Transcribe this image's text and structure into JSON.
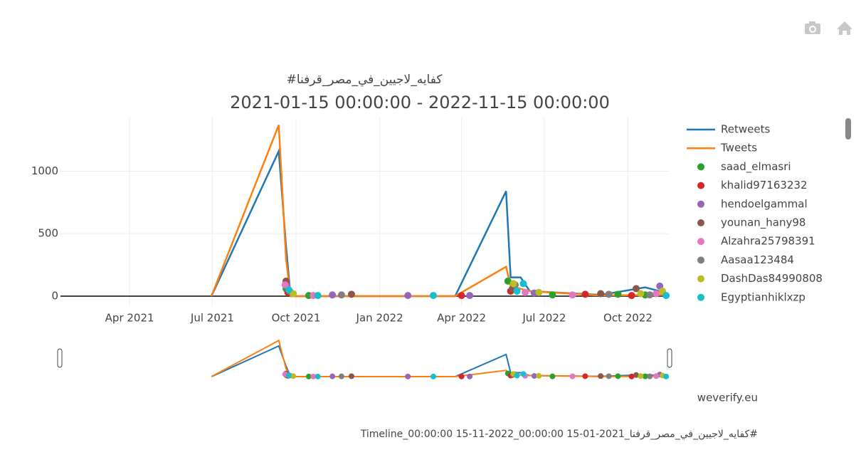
{
  "chart_data": {
    "type": "line",
    "title": "#كفايه_لاجيين_في_مصر_قرفنا",
    "subtitle": "2021-01-15 00:00:00 - 2022-11-15 00:00:00",
    "xlim": [
      "2021-01-15",
      "2022-11-15"
    ],
    "xticks": [
      {
        "value": "2021-04-01",
        "label": "Apr 2021"
      },
      {
        "value": "2021-07-01",
        "label": "Jul 2021"
      },
      {
        "value": "2021-10-01",
        "label": "Oct 2021"
      },
      {
        "value": "2022-01-01",
        "label": "Jan 2022"
      },
      {
        "value": "2022-04-01",
        "label": "Apr 2022"
      },
      {
        "value": "2022-07-01",
        "label": "Jul 2022"
      },
      {
        "value": "2022-10-01",
        "label": "Oct 2022"
      }
    ],
    "ylim": [
      -80,
      1430
    ],
    "yticks": [
      0,
      500,
      1000
    ],
    "grid": true,
    "series": [
      {
        "name": "Retweets",
        "color": "#1f77b4",
        "mode": "lines",
        "x": [
          "2021-06-30",
          "2021-09-12",
          "2021-09-20",
          "2021-09-25",
          "2022-03-25",
          "2022-05-20",
          "2022-05-25",
          "2022-06-05",
          "2022-06-15",
          "2022-09-01",
          "2022-10-20",
          "2022-11-10"
        ],
        "values": [
          0,
          1160,
          400,
          0,
          0,
          840,
          150,
          150,
          40,
          10,
          70,
          30
        ]
      },
      {
        "name": "Tweets",
        "color": "#ff7f0e",
        "mode": "lines",
        "x": [
          "2021-06-30",
          "2021-09-12",
          "2021-09-20",
          "2021-09-25",
          "2022-03-25",
          "2022-05-20",
          "2022-05-25",
          "2022-06-15",
          "2022-09-01",
          "2022-11-10"
        ],
        "values": [
          0,
          1370,
          300,
          0,
          0,
          235,
          80,
          40,
          5,
          10
        ]
      },
      {
        "name": "saad_elmasri",
        "color": "#2ca02c",
        "mode": "markers",
        "x": [
          "2021-09-20",
          "2021-10-15",
          "2022-05-22",
          "2022-07-10",
          "2022-09-20",
          "2022-10-20"
        ],
        "values": [
          60,
          5,
          120,
          10,
          15,
          10
        ]
      },
      {
        "name": "khalid97163232",
        "color": "#d62728",
        "mode": "markers",
        "x": [
          "2021-09-22",
          "2022-04-01",
          "2022-05-25",
          "2022-08-15",
          "2022-10-05"
        ],
        "values": [
          30,
          5,
          40,
          15,
          5
        ]
      },
      {
        "name": "hendoelgammal",
        "color": "#9467bd",
        "mode": "markers",
        "x": [
          "2021-09-21",
          "2021-11-10",
          "2022-02-01",
          "2022-04-10",
          "2022-06-20",
          "2022-11-05"
        ],
        "values": [
          100,
          10,
          5,
          5,
          25,
          80
        ]
      },
      {
        "name": "younan_hany98",
        "color": "#8c564b",
        "mode": "markers",
        "x": [
          "2021-09-20",
          "2021-12-01",
          "2022-05-27",
          "2022-09-01",
          "2022-10-10"
        ],
        "values": [
          120,
          15,
          60,
          20,
          60
        ]
      },
      {
        "name": "Alzahra25798391",
        "color": "#e377c2",
        "mode": "markers",
        "x": [
          "2021-09-19",
          "2021-10-20",
          "2022-06-10",
          "2022-08-01",
          "2022-11-01"
        ],
        "values": [
          90,
          5,
          30,
          10,
          20
        ]
      },
      {
        "name": "Aasaa123484",
        "color": "#7f7f7f",
        "mode": "markers",
        "x": [
          "2021-09-24",
          "2021-11-20",
          "2022-05-30",
          "2022-09-10",
          "2022-10-25"
        ],
        "values": [
          40,
          10,
          90,
          15,
          10
        ]
      },
      {
        "name": "DashDas84990808",
        "color": "#bcbd22",
        "mode": "markers",
        "x": [
          "2021-09-28",
          "2022-05-28",
          "2022-06-25",
          "2022-10-15",
          "2022-11-08"
        ],
        "values": [
          20,
          100,
          30,
          20,
          40
        ]
      },
      {
        "name": "Egyptianhiklxzp",
        "color": "#17becf",
        "mode": "markers",
        "x": [
          "2021-09-23",
          "2021-10-25",
          "2022-03-01",
          "2022-06-01",
          "2022-06-08",
          "2022-11-12"
        ],
        "values": [
          50,
          5,
          5,
          40,
          100,
          5
        ]
      }
    ],
    "source": "weverify.eu",
    "filename": "Timeline_كفايه_لاجيين_في_مصر_قرفنا_2021-01-15 00:00:00_2022-11-15 00:00:00#"
  }
}
